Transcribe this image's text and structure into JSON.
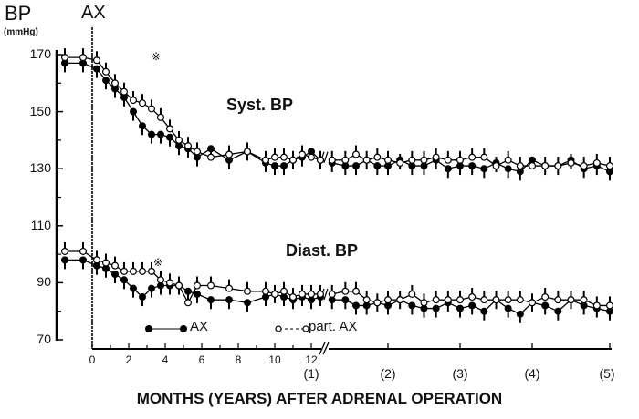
{
  "chart_data": {
    "type": "line",
    "title": "",
    "ylabel": "BP",
    "ylabel_unit": "(mmHg)",
    "xlabel": "MONTHS (YEARS) AFTER ADRENAL OPERATION",
    "ylim": [
      70,
      170
    ],
    "yticks": [
      170,
      150,
      130,
      110,
      90,
      70
    ],
    "xticks_months": [
      "0",
      "2",
      "4",
      "6",
      "8",
      "10",
      "12"
    ],
    "xticks_years": [
      "(1)",
      "(2)",
      "(3)",
      "(4)",
      "(5)"
    ],
    "annotations": {
      "operation_marker": "AX",
      "significance_marker": "※",
      "axis_break": "//"
    },
    "panels": [
      {
        "name": "Syst. BP"
      },
      {
        "name": "Diast. BP"
      }
    ],
    "legend": [
      {
        "label": "AX",
        "marker": "filled-circle",
        "line": "solid"
      },
      {
        "label": "part. AX",
        "marker": "open-circle",
        "line": "dashed"
      }
    ],
    "x": [
      -1.5,
      -0.5,
      0.25,
      0.75,
      1.25,
      1.75,
      2.25,
      2.75,
      3.25,
      3.75,
      4.25,
      4.75,
      5.25,
      5.75,
      6.5,
      7.5,
      8.5,
      9.5,
      10.0,
      10.5,
      11.0,
      11.5,
      12.0,
      12.5,
      13.5,
      16,
      18,
      20,
      22,
      24,
      26,
      28,
      30,
      32,
      34,
      36,
      38,
      40,
      42,
      44,
      46,
      48,
      50,
      52,
      54,
      56,
      58,
      60
    ],
    "series": [
      {
        "name": "Syst. BP – AX",
        "values": [
          167,
          167,
          165,
          161,
          158,
          155,
          150,
          145,
          142,
          142,
          141,
          138,
          137,
          134,
          137,
          133,
          136,
          132,
          131,
          131,
          133,
          134,
          136,
          133,
          132,
          131,
          131,
          133,
          131,
          131,
          133,
          131,
          131,
          133,
          130,
          131,
          131,
          130,
          132,
          130,
          129,
          133,
          131,
          131,
          133,
          130,
          131,
          129
        ]
      },
      {
        "name": "Syst. BP – part. AX",
        "values": [
          169,
          169,
          168,
          164,
          160,
          157,
          154,
          153,
          151,
          148,
          144,
          140,
          138,
          136,
          134,
          135,
          136,
          133,
          134,
          134,
          133,
          135,
          134,
          133,
          133,
          133,
          135,
          133,
          134,
          133,
          132,
          133,
          133,
          134,
          133,
          133,
          134,
          134,
          131,
          133,
          131,
          131,
          131,
          131,
          132,
          131,
          132,
          131
        ]
      },
      {
        "name": "Diast. BP – AX",
        "values": [
          98,
          98,
          96,
          95,
          93,
          91,
          88,
          85,
          88,
          89,
          89,
          89,
          87,
          86,
          84,
          84,
          83,
          85,
          86,
          85,
          84,
          85,
          84,
          85,
          84,
          84,
          82,
          82,
          83,
          82,
          84,
          82,
          81,
          81,
          83,
          81,
          82,
          80,
          84,
          81,
          79,
          83,
          82,
          80,
          84,
          82,
          81,
          80
        ]
      },
      {
        "name": "Diast. BP – part. AX",
        "values": [
          101,
          101,
          98,
          97,
          96,
          94,
          94,
          94,
          94,
          91,
          90,
          89,
          83,
          89,
          89,
          88,
          87,
          87,
          86,
          87,
          85,
          86,
          86,
          86,
          86,
          87,
          87,
          84,
          83,
          84,
          84,
          86,
          83,
          84,
          84,
          84,
          85,
          84,
          84,
          84,
          84,
          83,
          85,
          84,
          84,
          84,
          82,
          82
        ]
      }
    ],
    "grid": false,
    "legend_position": "bottom-left inside plot"
  },
  "labels": {
    "ylabel_main": "BP",
    "ylabel_unit": "(mmHg)",
    "ax_marker": "AX",
    "syst_title": "Syst. BP",
    "diast_title": "Diast. BP",
    "legend_ax": "AX",
    "legend_part_ax": "part. AX",
    "xlabel": "MONTHS (YEARS) AFTER ADRENAL OPERATION",
    "star": "※"
  }
}
